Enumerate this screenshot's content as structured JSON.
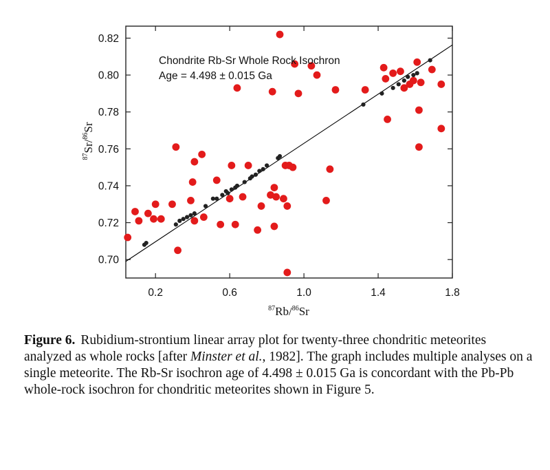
{
  "chart_data": {
    "type": "scatter",
    "annotation_line1": "Chondrite Rb-Sr Whole Rock Isochron",
    "annotation_line2": "Age = 4.498 ± 0.015 Ga",
    "xlabel": {
      "sup1": "87",
      "base1": "Rb/",
      "sup2": "86",
      "base2": "Sr"
    },
    "ylabel": {
      "sup1": "87",
      "base1": "Sr/",
      "sup2": "86",
      "base2": "Sr"
    },
    "xlim": [
      0.04,
      1.8
    ],
    "ylim": [
      0.69,
      0.8265
    ],
    "x_ticks": [
      0.2,
      0.6,
      1.0,
      1.4,
      1.8
    ],
    "x_tick_labels": [
      "0.2",
      "0.6",
      "1.0",
      "1.4",
      "1.8"
    ],
    "y_ticks": [
      0.7,
      0.72,
      0.74,
      0.76,
      0.78,
      0.8,
      0.82
    ],
    "y_tick_labels": [
      "0.70",
      "0.72",
      "0.74",
      "0.76",
      "0.78",
      "0.80",
      "0.82"
    ],
    "grid": false,
    "isochron_line": {
      "x": [
        0.04,
        1.8
      ],
      "y": [
        0.699,
        0.8163
      ]
    },
    "colors": {
      "scatter_points": "#e31b1b",
      "isochron_points": "#222222",
      "line": "#000000"
    },
    "series": [
      {
        "values": [
          [
            0.05,
            0.712
          ],
          [
            0.09,
            0.726
          ],
          [
            0.11,
            0.721
          ],
          [
            0.16,
            0.725
          ],
          [
            0.2,
            0.73
          ],
          [
            0.19,
            0.722
          ],
          [
            0.23,
            0.722
          ],
          [
            0.29,
            0.73
          ],
          [
            0.31,
            0.761
          ],
          [
            0.32,
            0.705
          ],
          [
            0.4,
            0.742
          ],
          [
            0.41,
            0.753
          ],
          [
            0.41,
            0.721
          ],
          [
            0.39,
            0.732
          ],
          [
            0.45,
            0.757
          ],
          [
            0.46,
            0.723
          ],
          [
            0.53,
            0.743
          ],
          [
            0.55,
            0.719
          ],
          [
            0.61,
            0.751
          ],
          [
            0.6,
            0.733
          ],
          [
            0.63,
            0.719
          ],
          [
            0.64,
            0.793
          ],
          [
            0.67,
            0.734
          ],
          [
            0.7,
            0.751
          ],
          [
            0.75,
            0.716
          ],
          [
            0.77,
            0.729
          ],
          [
            0.82,
            0.735
          ],
          [
            0.83,
            0.791
          ],
          [
            0.84,
            0.739
          ],
          [
            0.84,
            0.718
          ],
          [
            0.85,
            0.734
          ],
          [
            0.87,
            0.822
          ],
          [
            0.89,
            0.733
          ],
          [
            0.9,
            0.751
          ],
          [
            0.91,
            0.729
          ],
          [
            0.92,
            0.751
          ],
          [
            0.94,
            0.75
          ],
          [
            0.95,
            0.806
          ],
          [
            0.97,
            0.79
          ],
          [
            0.91,
            0.693
          ],
          [
            1.04,
            0.805
          ],
          [
            1.07,
            0.8
          ],
          [
            1.12,
            0.732
          ],
          [
            1.14,
            0.749
          ],
          [
            1.17,
            0.792
          ],
          [
            1.33,
            0.792
          ],
          [
            1.43,
            0.804
          ],
          [
            1.44,
            0.798
          ],
          [
            1.45,
            0.776
          ],
          [
            1.48,
            0.801
          ],
          [
            1.52,
            0.802
          ],
          [
            1.54,
            0.793
          ],
          [
            1.57,
            0.795
          ],
          [
            1.59,
            0.797
          ],
          [
            1.61,
            0.807
          ],
          [
            1.62,
            0.781
          ],
          [
            1.63,
            0.796
          ],
          [
            1.62,
            0.761
          ],
          [
            1.69,
            0.803
          ],
          [
            1.74,
            0.795
          ],
          [
            1.74,
            0.771
          ]
        ]
      },
      {
        "values": [
          [
            0.14,
            0.708
          ],
          [
            0.15,
            0.709
          ],
          [
            0.31,
            0.719
          ],
          [
            0.33,
            0.721
          ],
          [
            0.35,
            0.722
          ],
          [
            0.37,
            0.723
          ],
          [
            0.39,
            0.724
          ],
          [
            0.41,
            0.725
          ],
          [
            0.47,
            0.729
          ],
          [
            0.51,
            0.733
          ],
          [
            0.53,
            0.733
          ],
          [
            0.56,
            0.735
          ],
          [
            0.58,
            0.737
          ],
          [
            0.59,
            0.736
          ],
          [
            0.61,
            0.738
          ],
          [
            0.63,
            0.739
          ],
          [
            0.64,
            0.74
          ],
          [
            0.68,
            0.742
          ],
          [
            0.71,
            0.744
          ],
          [
            0.72,
            0.745
          ],
          [
            0.74,
            0.746
          ],
          [
            0.76,
            0.748
          ],
          [
            0.78,
            0.749
          ],
          [
            0.8,
            0.751
          ],
          [
            0.86,
            0.755
          ],
          [
            0.87,
            0.756
          ],
          [
            1.32,
            0.784
          ],
          [
            1.42,
            0.79
          ],
          [
            1.48,
            0.793
          ],
          [
            1.51,
            0.795
          ],
          [
            1.54,
            0.797
          ],
          [
            1.56,
            0.799
          ],
          [
            1.59,
            0.8
          ],
          [
            1.61,
            0.801
          ],
          [
            1.68,
            0.808
          ]
        ]
      }
    ]
  },
  "caption": {
    "label": "Figure 6.",
    "text_before_italic": "Rubidium-strontium linear array plot for twenty-three chondritic meteorites analyzed as whole rocks [after ",
    "italic": "Minster et al.",
    "text_after_italic": ", 1982]. The graph includes multiple analyses on a single meteorite. The Rb-Sr isochron age of 4.498 ± 0.015 Ga is concordant with the Pb-Pb whole-rock isochron for chondritic meteorites shown in Figure 5."
  }
}
